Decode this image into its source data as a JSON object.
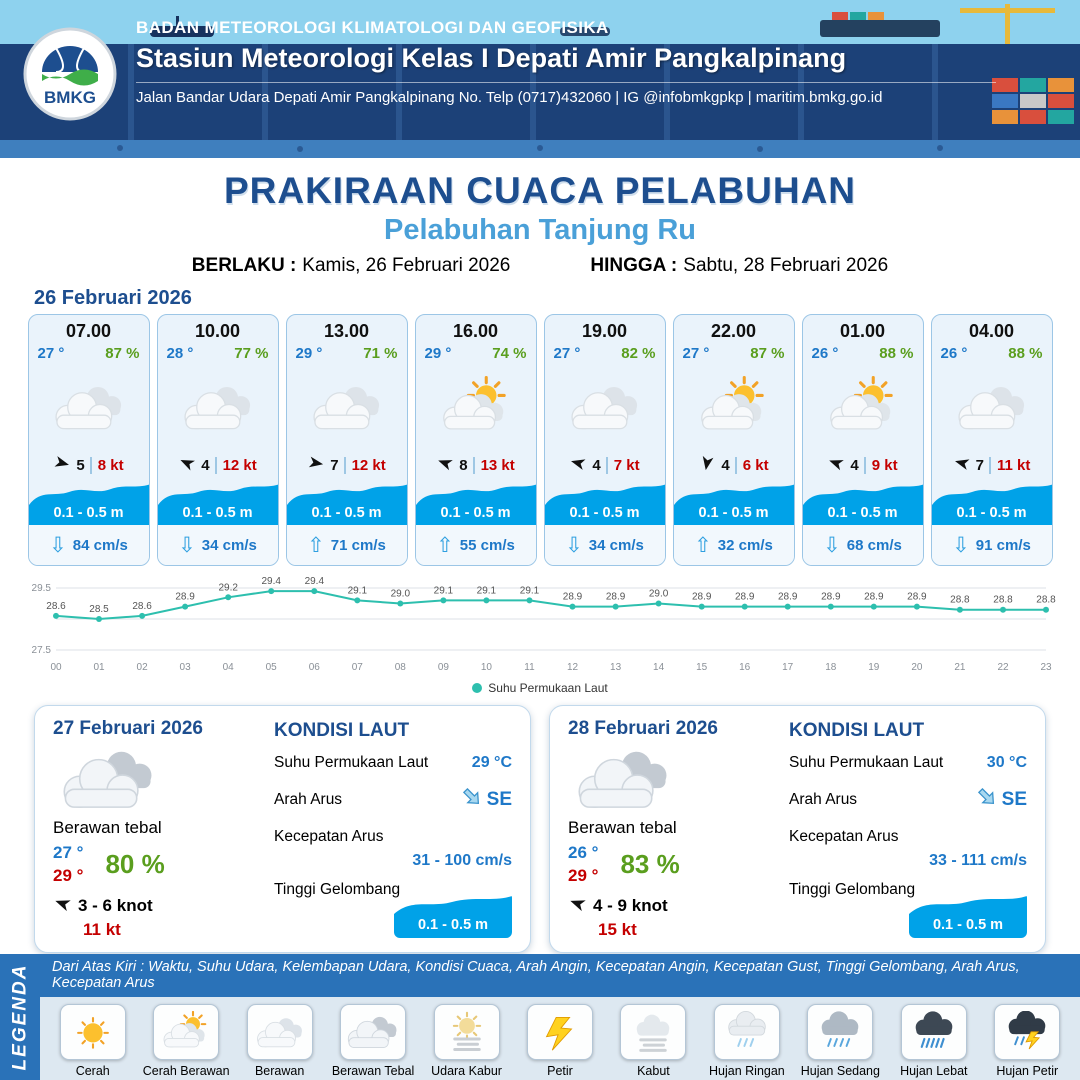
{
  "header": {
    "logo_label": "BMKG",
    "agency": "BADAN METEOROLOGI KLIMATOLOGI DAN GEOFISIKA",
    "station": "Stasiun Meteorologi Kelas I Depati Amir Pangkalpinang",
    "address": "Jalan Bandar Udara Depati Amir Pangkalpinang No. Telp (0717)432060 | IG @infobmkgpkp | maritim.bmkg.go.id"
  },
  "title": {
    "main": "PRAKIRAAN CUACA PELABUHAN",
    "subtitle": "Pelabuhan Tanjung Ru",
    "valid_label": "BERLAKU :",
    "valid_value": "Kamis, 26 Februari 2026",
    "until_label": "HINGGA :",
    "until_value": "Sabtu, 28 Februari 2026"
  },
  "forecast_date": "26 Februari 2026",
  "cards": [
    {
      "time": "07.00",
      "temp": "27 °",
      "humidity": "87 %",
      "icon": "berawan",
      "wind_dir_deg": 15,
      "wind_speed": "5",
      "gust": "8 kt",
      "wave": "0.1 - 0.5 m",
      "current_dir": "down",
      "current": "84 cm/s"
    },
    {
      "time": "10.00",
      "temp": "28 °",
      "humidity": "77 %",
      "icon": "berawan",
      "wind_dir_deg": 205,
      "wind_speed": "4",
      "gust": "12 kt",
      "wave": "0.1 - 0.5 m",
      "current_dir": "down",
      "current": "34 cm/s"
    },
    {
      "time": "13.00",
      "temp": "29 °",
      "humidity": "71 %",
      "icon": "berawan",
      "wind_dir_deg": 10,
      "wind_speed": "7",
      "gust": "12 kt",
      "wave": "0.1 - 0.5 m",
      "current_dir": "up",
      "current": "71 cm/s"
    },
    {
      "time": "16.00",
      "temp": "29 °",
      "humidity": "74 %",
      "icon": "cerah-berawan",
      "wind_dir_deg": 200,
      "wind_speed": "8",
      "gust": "13 kt",
      "wave": "0.1 - 0.5 m",
      "current_dir": "up",
      "current": "55 cm/s"
    },
    {
      "time": "19.00",
      "temp": "27 °",
      "humidity": "82 %",
      "icon": "berawan",
      "wind_dir_deg": 195,
      "wind_speed": "4",
      "gust": "7 kt",
      "wave": "0.1 - 0.5 m",
      "current_dir": "down",
      "current": "34 cm/s"
    },
    {
      "time": "22.00",
      "temp": "27 °",
      "humidity": "87 %",
      "icon": "cerah-berawan",
      "wind_dir_deg": 100,
      "wind_speed": "4",
      "gust": "6 kt",
      "wave": "0.1 - 0.5 m",
      "current_dir": "up",
      "current": "32 cm/s"
    },
    {
      "time": "01.00",
      "temp": "26 °",
      "humidity": "88 %",
      "icon": "cerah-berawan",
      "wind_dir_deg": 200,
      "wind_speed": "4",
      "gust": "9 kt",
      "wave": "0.1 - 0.5 m",
      "current_dir": "down",
      "current": "68 cm/s"
    },
    {
      "time": "04.00",
      "temp": "26 °",
      "humidity": "88 %",
      "icon": "berawan",
      "wind_dir_deg": 195,
      "wind_speed": "7",
      "gust": "11 kt",
      "wave": "0.1 - 0.5 m",
      "current_dir": "down",
      "current": "91 cm/s"
    }
  ],
  "chart_data": {
    "type": "line",
    "title": "Suhu Permukaan Laut",
    "x_labels": [
      "00",
      "01",
      "02",
      "03",
      "04",
      "05",
      "06",
      "07",
      "08",
      "09",
      "10",
      "11",
      "12",
      "13",
      "14",
      "15",
      "16",
      "17",
      "18",
      "19",
      "20",
      "21",
      "22",
      "23"
    ],
    "series": [
      {
        "name": "Suhu Permukaan Laut",
        "values": [
          28.6,
          28.5,
          28.6,
          28.9,
          29.2,
          29.4,
          29.4,
          29.1,
          29.0,
          29.1,
          29.1,
          29.1,
          28.9,
          28.9,
          29.0,
          28.9,
          28.9,
          28.9,
          28.9,
          28.9,
          28.9,
          28.8,
          28.8,
          28.8
        ]
      }
    ],
    "ylim": [
      27.5,
      29.5
    ],
    "y_ticks": [
      29.5,
      27.5
    ],
    "xlabel": "",
    "ylabel": "",
    "line_color": "#2dbfae",
    "legend_position": "bottom"
  },
  "days": [
    {
      "date": "27 Februari 2026",
      "icon": "berawan-tebal",
      "condition": "Berawan tebal",
      "temp_min": "27 °",
      "temp_max": "29 °",
      "humidity": "80 %",
      "wind_dir_deg": 200,
      "wind_range": "3 - 6 knot",
      "gust": "11 kt",
      "sea": {
        "title": "KONDISI LAUT",
        "sst_label": "Suhu Permukaan Laut",
        "sst": "29 °C",
        "dir_label": "Arah Arus",
        "dir": "SE",
        "speed_label": "Kecepatan Arus",
        "speed": "31 - 100 cm/s",
        "wave_label": "Tinggi Gelombang",
        "wave": "0.1 - 0.5 m"
      }
    },
    {
      "date": "28 Februari 2026",
      "icon": "berawan-tebal",
      "condition": "Berawan tebal",
      "temp_min": "26 °",
      "temp_max": "29 °",
      "humidity": "83 %",
      "wind_dir_deg": 200,
      "wind_range": "4 - 9 knot",
      "gust": "15 kt",
      "sea": {
        "title": "KONDISI LAUT",
        "sst_label": "Suhu Permukaan Laut",
        "sst": "30 °C",
        "dir_label": "Arah Arus",
        "dir": "SE",
        "speed_label": "Kecepatan Arus",
        "speed": "33 - 111 cm/s",
        "wave_label": "Tinggi Gelombang",
        "wave": "0.1 - 0.5 m"
      }
    }
  ],
  "legend": {
    "title": "LEGENDA",
    "description": "Dari Atas Kiri : Waktu, Suhu Udara, Kelembapan Udara, Kondisi Cuaca, Arah Angin, Kecepatan Angin, Kecepatan Gust, Tinggi Gelombang, Arah Arus, Kecepatan Arus",
    "items": [
      {
        "label": "Cerah",
        "icon": "cerah"
      },
      {
        "label": "Cerah Berawan",
        "icon": "cerah-berawan"
      },
      {
        "label": "Berawan",
        "icon": "berawan"
      },
      {
        "label": "Berawan Tebal",
        "icon": "berawan-tebal"
      },
      {
        "label": "Udara Kabur",
        "icon": "udara-kabur"
      },
      {
        "label": "Petir",
        "icon": "petir"
      },
      {
        "label": "Kabut",
        "icon": "kabut"
      },
      {
        "label": "Hujan Ringan",
        "icon": "hujan-ringan"
      },
      {
        "label": "Hujan Sedang",
        "icon": "hujan-sedang"
      },
      {
        "label": "Hujan Lebat",
        "icon": "hujan-lebat"
      },
      {
        "label": "Hujan Petir",
        "icon": "hujan-petir"
      }
    ]
  },
  "colors": {
    "navy": "#1c4178",
    "heading_blue": "#1d4e8f",
    "light_blue": "#4aa0d8",
    "value_blue": "#1e78c8",
    "green": "#5a9e1e",
    "red": "#c40000",
    "wave_blue": "#00a2e8",
    "teal": "#2dbfae",
    "legend_blue": "#2a72b8"
  }
}
